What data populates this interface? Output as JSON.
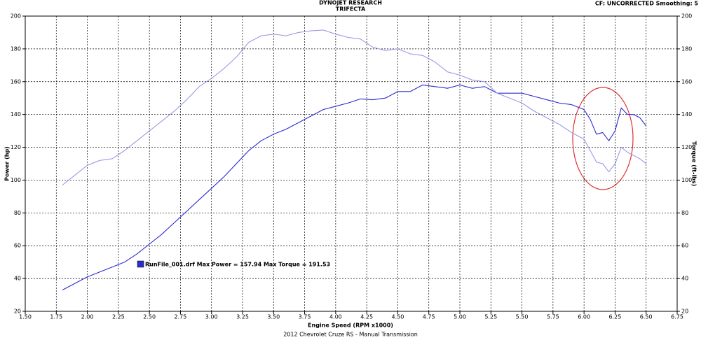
{
  "chart_data": {
    "type": "line",
    "title": "DYNOJET RESEARCH",
    "subtitle": "TRIFECTA",
    "settings_note": "CF: UNCORRECTED  Smoothing: 5",
    "xlabel": "Engine Speed (RPM x1000)",
    "ylabel": "Power (hp)",
    "y2label": "Torque (ft-lbs)",
    "footer": "2012 Chevrolet Cruze RS - Manual Transmission",
    "legend_text": "RunFile_001.drf Max Power = 157.94 Max Torque = 191.53",
    "grid": true,
    "xlim": [
      1.5,
      6.75
    ],
    "xticks": [
      {
        "value": 1.5,
        "label": "1.50"
      },
      {
        "value": 1.75,
        "label": "1.75"
      },
      {
        "value": 2.0,
        "label": "2.00"
      },
      {
        "value": 2.25,
        "label": "2.25"
      },
      {
        "value": 2.5,
        "label": "2.50"
      },
      {
        "value": 2.75,
        "label": "2.75"
      },
      {
        "value": 3.0,
        "label": "3.00"
      },
      {
        "value": 3.25,
        "label": "3.25"
      },
      {
        "value": 3.5,
        "label": "3.50"
      },
      {
        "value": 3.75,
        "label": "3.75"
      },
      {
        "value": 4.0,
        "label": "4.00"
      },
      {
        "value": 4.25,
        "label": "4.25"
      },
      {
        "value": 4.5,
        "label": "4.50"
      },
      {
        "value": 4.75,
        "label": "4.75"
      },
      {
        "value": 5.0,
        "label": "5.00"
      },
      {
        "value": 5.25,
        "label": "5.25"
      },
      {
        "value": 5.5,
        "label": "5.50"
      },
      {
        "value": 5.75,
        "label": "5.75"
      },
      {
        "value": 6.0,
        "label": "6.00"
      },
      {
        "value": 6.25,
        "label": "6.25"
      },
      {
        "value": 6.5,
        "label": "6.50"
      },
      {
        "value": 6.75,
        "label": "6.75"
      }
    ],
    "ylim": [
      20,
      200
    ],
    "yticks": [
      20,
      40,
      60,
      80,
      100,
      120,
      140,
      160,
      180,
      200
    ],
    "y2lim": [
      20,
      200
    ],
    "y2ticks": [
      20,
      40,
      60,
      80,
      100,
      120,
      140,
      160,
      180,
      200
    ],
    "x": [
      1.8,
      1.9,
      2.0,
      2.1,
      2.2,
      2.3,
      2.4,
      2.5,
      2.6,
      2.7,
      2.8,
      2.9,
      3.0,
      3.1,
      3.2,
      3.3,
      3.4,
      3.5,
      3.6,
      3.7,
      3.8,
      3.9,
      4.0,
      4.1,
      4.2,
      4.3,
      4.4,
      4.5,
      4.6,
      4.7,
      4.8,
      4.9,
      5.0,
      5.1,
      5.2,
      5.3,
      5.4,
      5.5,
      5.6,
      5.7,
      5.8,
      5.9,
      6.0,
      6.05,
      6.1,
      6.15,
      6.2,
      6.25,
      6.3,
      6.35,
      6.4,
      6.45,
      6.5
    ],
    "series": [
      {
        "color": "#2b2bd0",
        "values": [
          33,
          37,
          41,
          44,
          47,
          50,
          55,
          61,
          67,
          74,
          81,
          88,
          95,
          102,
          110,
          118,
          124,
          128,
          131,
          135,
          139,
          143,
          145,
          147,
          149.5,
          149,
          150,
          154,
          154,
          158,
          157,
          156,
          158,
          156,
          157,
          153,
          153,
          153,
          151,
          149,
          147,
          146,
          143,
          137,
          128,
          129,
          124,
          130,
          144,
          140,
          140,
          138,
          133
        ]
      },
      {
        "color": "#9a9ae6",
        "axis": "y2",
        "values": [
          97,
          103,
          109,
          112,
          113,
          118,
          124,
          130,
          136,
          142,
          149,
          157,
          162,
          168,
          175,
          184,
          188,
          189,
          188,
          190,
          191,
          191.5,
          189,
          187,
          186,
          181,
          179,
          180,
          177,
          176,
          172,
          166,
          164,
          161,
          160,
          153,
          150,
          147,
          142,
          138,
          134,
          129,
          125,
          118,
          111,
          110,
          105,
          110,
          120,
          117,
          115,
          113,
          110
        ]
      }
    ]
  }
}
